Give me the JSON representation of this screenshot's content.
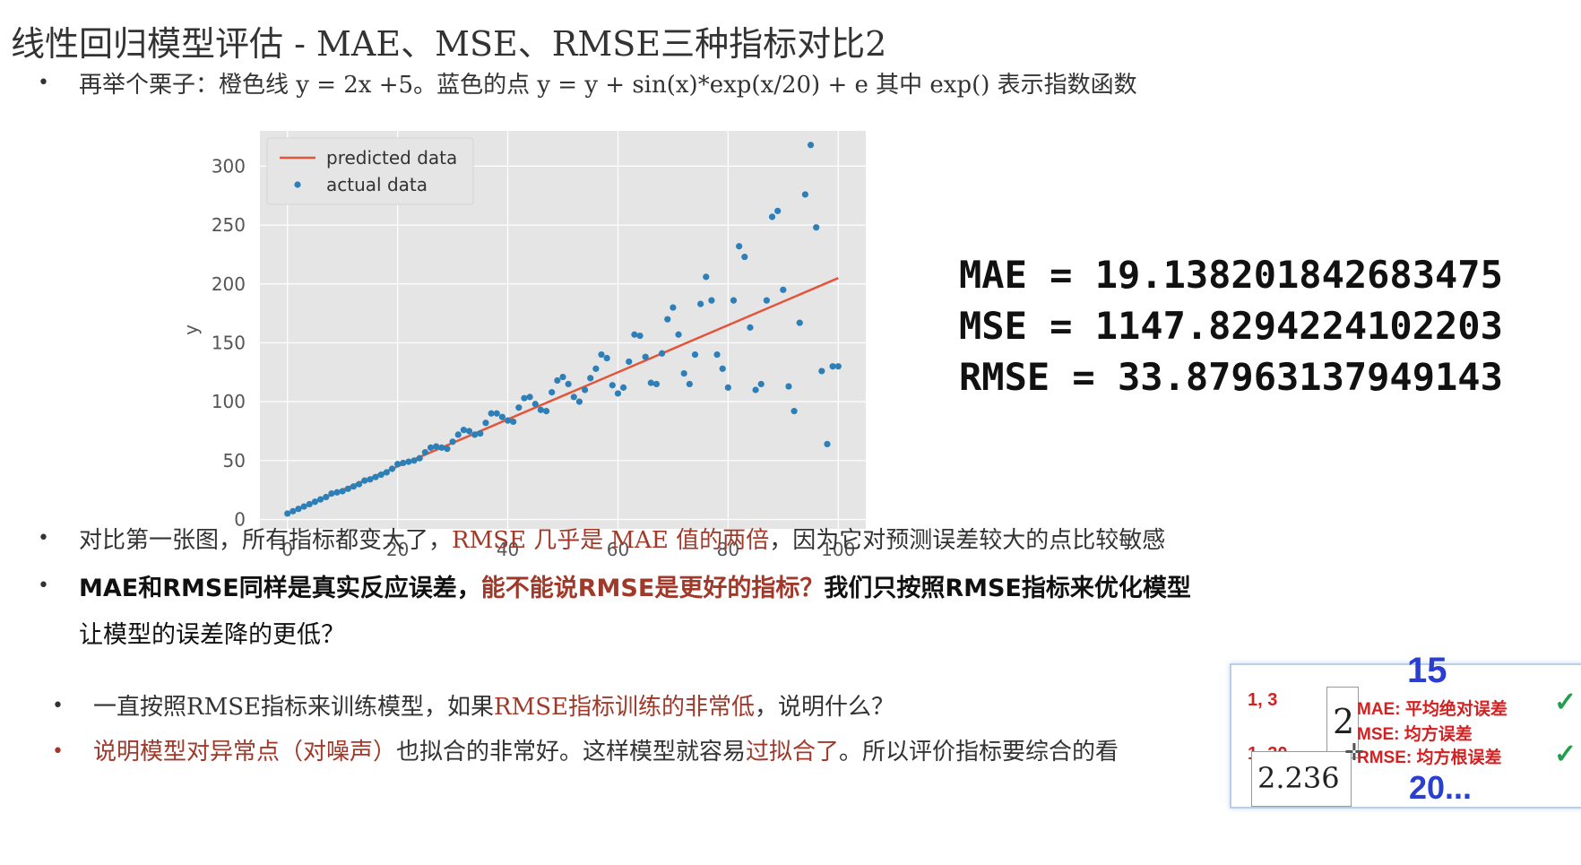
{
  "slide": {
    "title": "线性回归模型评估  -  MAE、MSE、RMSE三种指标对比2",
    "bullet1": "再举个栗子：橙色线 y = 2x +5。蓝色的点 y = y + sin(x)*exp(x/20) + e 其中 exp() 表示指数函数",
    "bullet2_pre": "对比第一张图，所有指标都变大了，",
    "bullet2_red": "RMSE 几乎是 MAE 值的两倍",
    "bullet2_post": "，因为它对预测误差较大的点比较敏感",
    "bullet3_pre": "MAE和RMSE同样是真实反应误差，",
    "bullet3_red": "能不能说RMSE是更好的指标？",
    "bullet3_post": "我们只按照RMSE指标来优化模型",
    "bullet3_line2": "让模型的误差降的更低？",
    "sub1_pre": "一直按照RMSE指标来训练模型，如果",
    "sub1_red": "RMSE指标训练的非常低",
    "sub1_post": "，说明什么？",
    "sub2_red1": "说明模型对异常点（对噪声）",
    "sub2_mid": "也拟合的非常好。这样模型就容易",
    "sub2_red2": "过拟合了",
    "sub2_post": "。所以评价指标要综合的看",
    "bullet_glyph": "•"
  },
  "metrics": {
    "mae": "MAE = 19.138201842683475",
    "mse": "MSE = 1147.8294224102203",
    "rmse": "RMSE = 33.87963137949143"
  },
  "overlay": {
    "n13": "1, 3",
    "n2": "2",
    "n130": "1, 30",
    "n2236": "2.236",
    "n15": "15",
    "n20": "20...",
    "mae": "MAE:  平均绝对误差",
    "mse": "MSE:   均方误差",
    "rmse": "RMSE: 均方根误差",
    "check": "✓"
  },
  "chart_data": {
    "type": "scatter",
    "xlabel": "",
    "ylabel": "y",
    "xlim": [
      -5,
      105
    ],
    "ylim": [
      -8,
      330
    ],
    "xticks": [
      0,
      20,
      40,
      60,
      80,
      100
    ],
    "yticks": [
      0,
      50,
      100,
      150,
      200,
      250,
      300
    ],
    "grid": true,
    "legend_position": "top-left",
    "series": [
      {
        "name": "predicted data",
        "kind": "line",
        "color": "#e2553a",
        "x": [
          0,
          100
        ],
        "y": [
          5,
          205
        ]
      },
      {
        "name": "actual data",
        "kind": "scatter",
        "color": "#2d7fb8",
        "x": [
          0,
          1,
          2,
          3,
          4,
          5,
          6,
          7,
          8,
          9,
          10,
          11,
          12,
          13,
          14,
          15,
          16,
          17,
          18,
          19,
          20,
          21,
          22,
          23,
          24,
          25,
          26,
          27,
          28,
          29,
          30,
          31,
          32,
          33,
          34,
          35,
          36,
          37,
          38,
          39,
          40,
          41,
          42,
          43,
          44,
          45,
          46,
          47,
          48,
          49,
          50,
          51,
          52,
          53,
          54,
          55,
          56,
          57,
          58,
          59,
          60,
          61,
          62,
          63,
          64,
          65,
          66,
          67,
          68,
          69,
          70,
          71,
          72,
          73,
          74,
          75,
          76,
          77,
          78,
          79,
          80,
          81,
          82,
          83,
          84,
          85,
          86,
          87,
          88,
          89,
          90,
          91,
          92,
          93,
          94,
          95,
          96,
          97,
          98,
          99,
          100
        ],
        "y": [
          5,
          7,
          9,
          11,
          13,
          15,
          17,
          19,
          22,
          23,
          24,
          26,
          28,
          30,
          33,
          34,
          36,
          38,
          40,
          43,
          47,
          48,
          49,
          50,
          52,
          57,
          61,
          62,
          61,
          60,
          66,
          72,
          76,
          75,
          72,
          73,
          82,
          90,
          90,
          87,
          84,
          83,
          95,
          103,
          104,
          98,
          93,
          92,
          108,
          118,
          121,
          115,
          104,
          100,
          110,
          120,
          128,
          140,
          137,
          114,
          107,
          112,
          134,
          157,
          156,
          138,
          116,
          115,
          141,
          170,
          180,
          157,
          124,
          115,
          140,
          183,
          206,
          186,
          140,
          128,
          112,
          186,
          232,
          223,
          163,
          110,
          115,
          186,
          257,
          262,
          195,
          113,
          92,
          167,
          276,
          318,
          248,
          126,
          64,
          130,
          130
        ]
      }
    ]
  }
}
